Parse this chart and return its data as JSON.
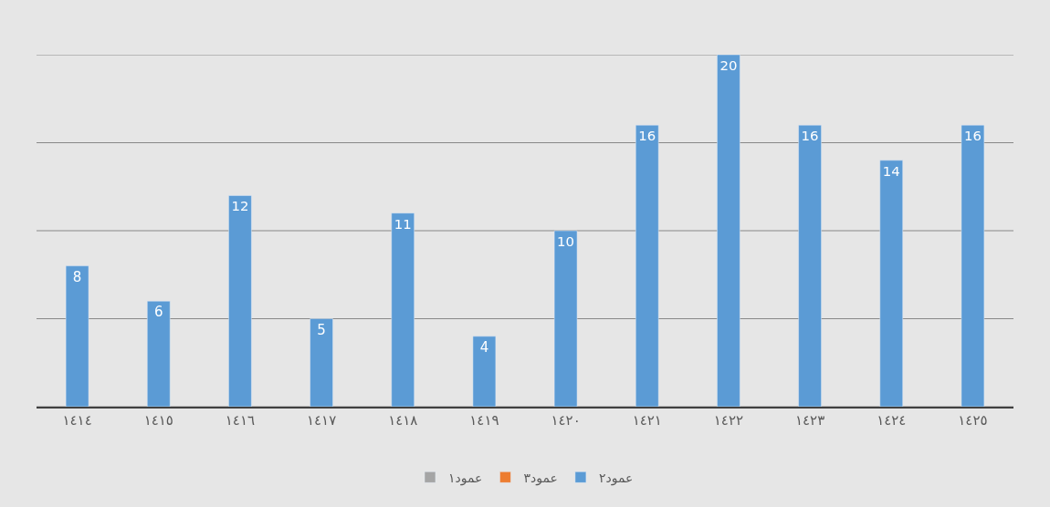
{
  "chart_data": {
    "type": "bar",
    "categories": [
      "١٤١٤",
      "١٤١٥",
      "١٤١٦",
      "١٤١٧",
      "١٤١٨",
      "١٤١٩",
      "١٤٢٠",
      "١٤٢١",
      "١٤٢٢",
      "١٤٢٣",
      "١٤٢٤",
      "١٤٢٥"
    ],
    "series": [
      {
        "name": "عمود١",
        "color": "#a5a5a5",
        "values": [
          null,
          null,
          null,
          null,
          null,
          null,
          null,
          null,
          null,
          null,
          null,
          null
        ]
      },
      {
        "name": "عمود٣",
        "color": "#ed7d31",
        "values": [
          null,
          null,
          null,
          null,
          null,
          null,
          null,
          null,
          null,
          null,
          null,
          null
        ]
      },
      {
        "name": "عمود٢",
        "color": "#5b9bd5",
        "values": [
          8,
          6,
          12,
          5,
          11,
          4,
          10,
          16,
          20,
          16,
          14,
          16
        ]
      }
    ],
    "ylim": [
      0,
      20
    ],
    "yticks": [
      {
        "value": 0,
        "label": null
      },
      {
        "value": 5,
        "label": null
      },
      {
        "value": 10,
        "label": null
      },
      {
        "value": 15,
        "label": null
      },
      {
        "value": 20,
        "label": null
      }
    ],
    "grid": "y",
    "legend": "bottom",
    "data_labels": true,
    "tick_labels": "x"
  }
}
